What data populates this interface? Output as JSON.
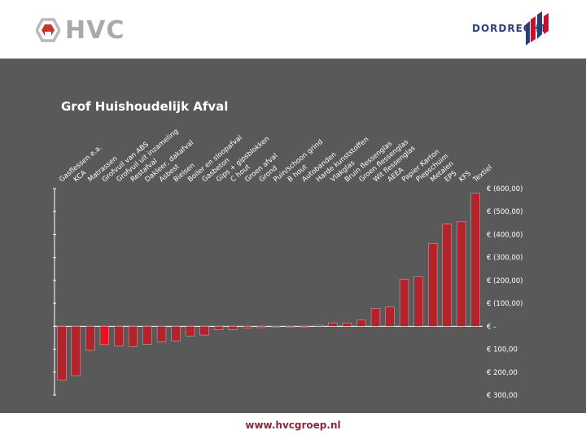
{
  "brand": {
    "logo_text": "HVC",
    "city": "DORDRECHT",
    "website": "www.hvcgroep.nl"
  },
  "colors": {
    "bar": "#b3232b",
    "highlight_bar": "#e8121e",
    "panel": "#595959",
    "text": "#ffffff"
  },
  "chart_data": {
    "type": "bar",
    "title": "Grof Huishoudelijk Afval",
    "xlabel": "",
    "ylabel": "",
    "categories": [
      "Gasflessen e.a.",
      "KCA",
      "Matrassen",
      "Grofvuil van ABS",
      "Grofvuil uit inzameling",
      "Restafval",
      "Dakleer, dakafval",
      "Asbest",
      "Bielsen",
      "Boiler en sloopafval",
      "Gasbeton",
      "Gips + gipsblokken",
      "C hout",
      "Groen afval",
      "Grond",
      "Puin/schoon grind",
      "B hout",
      "Autobanden",
      "Harde kunststoffen",
      "Vlakglas",
      "Bruin flessenglas",
      "Groen flessenglas",
      "Wit flessenglas",
      "AEEA",
      "Papier Karton",
      "Piepschuim",
      "Metalen",
      "EPS",
      "KFS",
      "Textiel"
    ],
    "values": [
      235,
      215,
      105,
      80,
      85,
      88,
      78,
      68,
      64,
      42,
      38,
      14,
      14,
      8,
      6,
      0,
      0,
      0,
      -5,
      -15,
      -15,
      -28,
      -78,
      -85,
      -205,
      -215,
      -362,
      -445,
      -455,
      -580
    ],
    "highlight_index": 3,
    "y_axis": {
      "ticks": [
        -600,
        -500,
        -400,
        -300,
        -200,
        -100,
        0,
        100,
        200,
        300
      ],
      "tick_labels": [
        "€ (600,00)",
        "€ (500,00)",
        "€ (400,00)",
        "€ (300,00)",
        "€ (200,00)",
        "€ (100,00)",
        "€ -",
        "€ 100,00",
        "€ 200,00",
        "€ 300,00"
      ],
      "position": "right",
      "inverted": true
    },
    "ylim": [
      -600,
      300
    ],
    "grid": false,
    "legend": "none"
  }
}
